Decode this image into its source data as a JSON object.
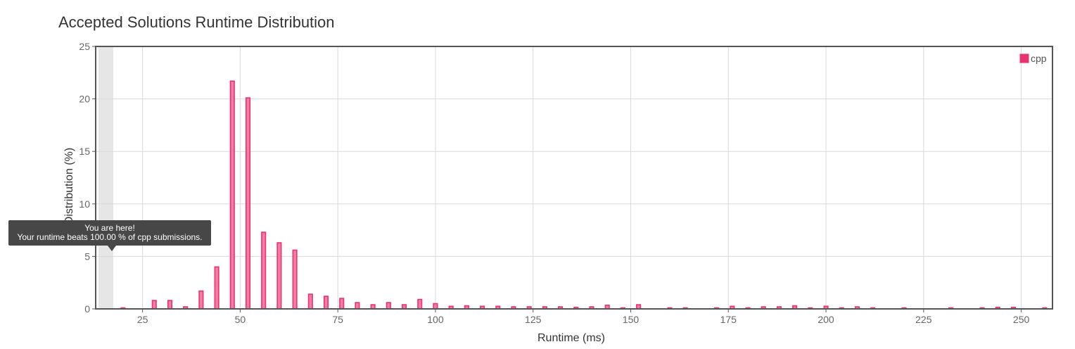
{
  "page": {
    "title": "Accepted Solutions Runtime Distribution"
  },
  "tooltip": {
    "line1": "You are here!",
    "line2": "Your runtime beats 100.00 % of cpp submissions."
  },
  "colors": {
    "bar_fill": "#f47ba5",
    "bar_stroke": "#e8336f",
    "legend_fill": "#e8336f",
    "highlight_band": "#e6e6e6",
    "grid": "#d9d9d9",
    "axis": "#555555",
    "tooltip_bg": "#474747"
  },
  "chart_data": {
    "type": "bar",
    "title": "Accepted Solutions Runtime Distribution",
    "xlabel": "Runtime (ms)",
    "ylabel": "Distribution (%)",
    "xlim": [
      13,
      258
    ],
    "ylim": [
      0,
      25
    ],
    "xticks": [
      25,
      50,
      75,
      100,
      125,
      150,
      175,
      200,
      225,
      250
    ],
    "yticks": [
      0,
      5,
      10,
      15,
      20,
      25
    ],
    "grid": true,
    "legend_position": "top-right",
    "highlight_x": [
      13,
      17.5
    ],
    "series": [
      {
        "name": "cpp",
        "x": [
          20,
          28,
          32,
          36,
          40,
          44,
          48,
          52,
          56,
          60,
          64,
          68,
          72,
          76,
          80,
          84,
          88,
          92,
          96,
          100,
          104,
          108,
          112,
          116,
          120,
          124,
          128,
          132,
          136,
          140,
          144,
          148,
          152,
          160,
          164,
          172,
          176,
          180,
          184,
          188,
          192,
          196,
          200,
          204,
          208,
          212,
          220,
          232,
          240,
          244,
          248,
          256
        ],
        "values": [
          0.1,
          0.8,
          0.8,
          0.2,
          1.7,
          4.0,
          21.7,
          20.1,
          7.3,
          6.3,
          5.6,
          1.4,
          1.2,
          1.0,
          0.6,
          0.4,
          0.6,
          0.4,
          0.9,
          0.5,
          0.25,
          0.3,
          0.25,
          0.25,
          0.2,
          0.2,
          0.2,
          0.2,
          0.15,
          0.2,
          0.35,
          0.1,
          0.4,
          0.1,
          0.1,
          0.1,
          0.25,
          0.1,
          0.2,
          0.2,
          0.3,
          0.1,
          0.25,
          0.1,
          0.2,
          0.1,
          0.1,
          0.1,
          0.1,
          0.15,
          0.15,
          0.1
        ]
      }
    ]
  }
}
